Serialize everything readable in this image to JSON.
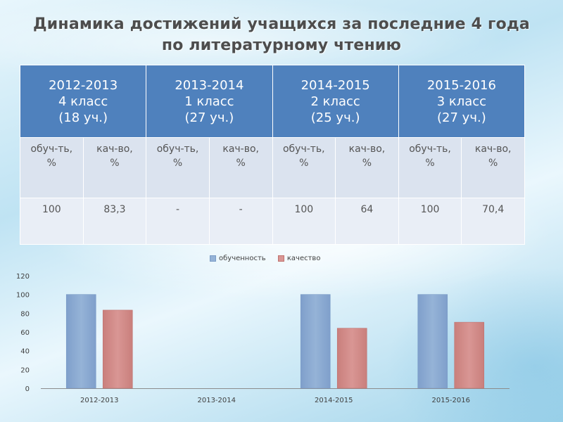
{
  "title": {
    "line1": "Динамика достижений учащихся за последние 4 года",
    "line2": "по литературному чтению"
  },
  "table": {
    "periods": [
      {
        "year": "2012-2013",
        "grade": "4 класс",
        "count": "(18 уч.)"
      },
      {
        "year": "2013-2014",
        "grade": "1 класс",
        "count": "(27 уч.)"
      },
      {
        "year": "2014-2015",
        "grade": "2 класс",
        "count": "(25 уч.)"
      },
      {
        "year": "2015-2016",
        "grade": "3 класс",
        "count": "(27 уч.)"
      }
    ],
    "subheaders": [
      {
        "l1": "обуч-ть,",
        "l2": "%"
      },
      {
        "l1": "кач-во,",
        "l2": "%"
      }
    ],
    "values": [
      [
        "100",
        "83,3"
      ],
      [
        "-",
        "-"
      ],
      [
        "100",
        "64"
      ],
      [
        "100",
        "70,4"
      ]
    ]
  },
  "colors": {
    "header": "#4f81bd",
    "series1": "#95b3d7",
    "series2": "#d99694"
  },
  "chart_data": {
    "type": "bar",
    "categories": [
      "2012-2013",
      "2013-2014",
      "2014-2015",
      "2015-2016"
    ],
    "series": [
      {
        "name": "обученность",
        "values": [
          100,
          null,
          100,
          100
        ]
      },
      {
        "name": "качество",
        "values": [
          83.3,
          null,
          64,
          70.4
        ]
      }
    ],
    "ylim": [
      0,
      120
    ],
    "yticks": [
      "0",
      "20",
      "40",
      "60",
      "80",
      "100",
      "120"
    ],
    "legend": "top-center",
    "grid": false
  }
}
